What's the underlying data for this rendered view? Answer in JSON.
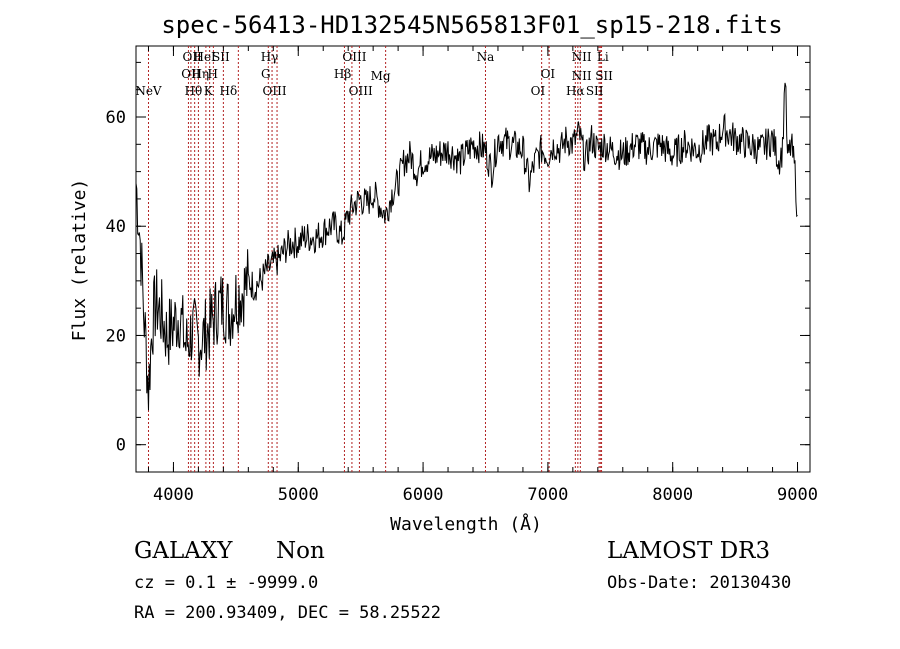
{
  "chart_data": {
    "type": "line",
    "title": "spec-56413-HD132545N565813F01_sp15-218.fits",
    "xlabel": "Wavelength (Å)",
    "ylabel": "Flux (relative)",
    "xlim": [
      3700,
      9100
    ],
    "ylim": [
      -5,
      73
    ],
    "xticks": [
      4000,
      5000,
      6000,
      7000,
      8000,
      9000
    ],
    "yticks": [
      0,
      20,
      40,
      60
    ],
    "grid": false,
    "legend": "none",
    "line_color": "#000000",
    "marker_color": "#b22222",
    "series": [
      {
        "x": [
          3700,
          3720,
          3740,
          3760,
          3780,
          3800,
          3830,
          3860,
          3900,
          3950,
          4000,
          4050,
          4100,
          4150,
          4200,
          4250,
          4300,
          4350,
          4400,
          4450,
          4500,
          4550,
          4600,
          4650,
          4700,
          4750,
          4800,
          4850,
          4900,
          4950,
          5000,
          5050,
          5100,
          5150,
          5200,
          5250,
          5300,
          5350,
          5400,
          5450,
          5500,
          5550,
          5600,
          5650,
          5700,
          5750,
          5800,
          5850,
          5900,
          5950,
          6000,
          6100,
          6200,
          6300,
          6400,
          6500,
          6550,
          6600,
          6700,
          6800,
          6850,
          6900,
          6950,
          7000,
          7050,
          7100,
          7150,
          7200,
          7250,
          7300,
          7350,
          7400,
          7450,
          7500,
          7600,
          7700,
          7800,
          7900,
          8000,
          8100,
          8200,
          8300,
          8350,
          8400,
          8500,
          8600,
          8700,
          8800,
          8850,
          8880,
          8900,
          8920,
          8950,
          8980,
          9000
        ],
        "y": [
          48,
          42,
          35,
          25,
          18,
          10,
          22,
          26,
          24,
          20,
          22,
          24,
          18,
          21,
          19,
          20,
          22,
          25,
          26,
          24,
          27,
          28,
          30,
          29,
          30,
          32,
          33,
          34,
          36,
          37,
          37,
          38,
          38,
          38,
          39,
          40,
          40,
          38,
          42,
          44,
          45,
          44,
          46,
          44,
          42,
          46,
          48,
          52,
          53,
          50,
          52,
          53,
          54,
          52,
          55,
          54,
          50,
          56,
          55,
          54,
          48,
          52,
          54,
          53,
          55,
          54,
          56,
          55,
          57,
          52,
          56,
          54,
          55,
          54,
          53,
          55,
          54,
          55,
          53,
          55,
          54,
          56,
          55,
          58,
          56,
          55,
          54,
          56,
          52,
          54,
          68,
          52,
          55,
          50,
          42
        ]
      }
    ],
    "lines": [
      {
        "name": "NeV",
        "x": 3800,
        "row": 3,
        "ticks": [
          3800
        ]
      },
      {
        "name": "OII",
        "x": 4150,
        "row": 0,
        "ticks": [
          4120
        ]
      },
      {
        "name": "HeI",
        "x": 4250,
        "row": 0,
        "ticks": [
          4260
        ]
      },
      {
        "name": "SII",
        "x": 4380,
        "row": 0,
        "ticks": [
          4400
        ]
      },
      {
        "name": "OII",
        "x": 4140,
        "row": 1,
        "ticks": [
          4140
        ]
      },
      {
        "name": "Hη",
        "x": 4215,
        "row": 1,
        "ticks": [
          4200
        ]
      },
      {
        "name": "H",
        "x": 4315,
        "row": 1,
        "ticks": [
          4320
        ]
      },
      {
        "name": "Hθ",
        "x": 4160,
        "row": 3,
        "ticks": [
          4170
        ]
      },
      {
        "name": "K",
        "x": 4280,
        "row": 3,
        "ticks": [
          4290
        ]
      },
      {
        "name": "Hδ",
        "x": 4440,
        "row": 3,
        "ticks": [
          4520
        ]
      },
      {
        "name": "Hγ",
        "x": 4770,
        "row": 0,
        "ticks": [
          4760
        ]
      },
      {
        "name": "G",
        "x": 4740,
        "row": 1,
        "ticks": [
          4790
        ]
      },
      {
        "name": "OIII",
        "x": 4810,
        "row": 3,
        "ticks": [
          4830
        ]
      },
      {
        "name": "OIII",
        "x": 5450,
        "row": 0,
        "ticks": [
          5430
        ]
      },
      {
        "name": "Hβ",
        "x": 5355,
        "row": 1,
        "ticks": [
          5370
        ]
      },
      {
        "name": "Mg",
        "x": 5660,
        "row": 2,
        "ticks": [
          5700
        ]
      },
      {
        "name": "OIII",
        "x": 5500,
        "row": 3,
        "ticks": [
          5490
        ]
      },
      {
        "name": "Na",
        "x": 6500,
        "row": 0,
        "ticks": [
          6500
        ]
      },
      {
        "name": "OI",
        "x": 7000,
        "row": 1,
        "ticks": [
          7010
        ]
      },
      {
        "name": "OI",
        "x": 6920,
        "row": 3,
        "ticks": [
          6950
        ]
      },
      {
        "name": "NII",
        "x": 7270,
        "row": 0,
        "ticks": [
          7220
        ]
      },
      {
        "name": "Li",
        "x": 7440,
        "row": 0,
        "ticks": [
          7410
        ]
      },
      {
        "name": "NII",
        "x": 7270,
        "row": 2,
        "ticks": [
          7260
        ]
      },
      {
        "name": "SII",
        "x": 7450,
        "row": 2,
        "ticks": [
          7420
        ]
      },
      {
        "name": "Hα",
        "x": 7220,
        "row": 3,
        "ticks": [
          7240
        ]
      },
      {
        "name": "SII",
        "x": 7375,
        "row": 3,
        "ticks": [
          7430
        ]
      }
    ]
  },
  "info": {
    "class": "GALAXY",
    "subclass": "Non",
    "survey": "LAMOST DR3",
    "cz": "cz = 0.1 ± -9999.0",
    "obs_date": "Obs-Date: 20130430",
    "coords": "RA = 200.93409, DEC =  58.25522"
  }
}
